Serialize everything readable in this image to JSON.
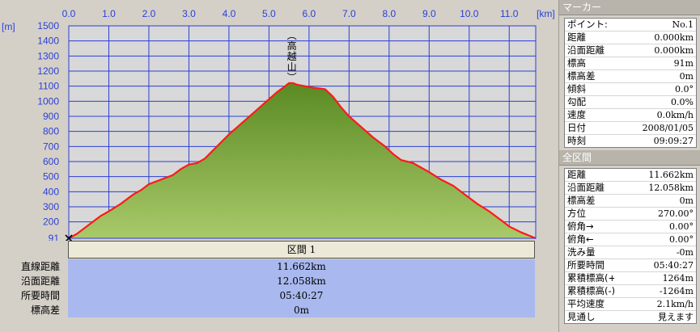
{
  "chart_data": {
    "type": "area",
    "xunit": "[km]",
    "yunit": "[m]",
    "x_ticks": [
      "0.0",
      "1.0",
      "2.0",
      "3.0",
      "4.0",
      "5.0",
      "6.0",
      "7.0",
      "8.0",
      "9.0",
      "10.0",
      "11.0"
    ],
    "y_ticks": [
      91,
      200,
      300,
      400,
      500,
      600,
      700,
      800,
      900,
      1000,
      1100,
      1200,
      1300,
      1400,
      1500
    ],
    "xlim": [
      0,
      11.662
    ],
    "ylim": [
      91,
      1500
    ],
    "grid": true,
    "peak_label": "高越山",
    "peak_x": 5.57,
    "series": [
      {
        "x": [
          0,
          0.2,
          0.5,
          0.8,
          1.0,
          1.3,
          1.6,
          1.8,
          2.0,
          2.3,
          2.6,
          2.8,
          3.0,
          3.2,
          3.4,
          3.7,
          4.0,
          4.3,
          4.6,
          4.9,
          5.2,
          5.4,
          5.5,
          5.6,
          5.7,
          5.9,
          6.1,
          6.4,
          6.6,
          6.8,
          7.0,
          7.3,
          7.6,
          7.9,
          8.1,
          8.3,
          8.6,
          8.8,
          9.0,
          9.3,
          9.6,
          9.9,
          10.2,
          10.5,
          10.8,
          11.0,
          11.3,
          11.662
        ],
        "y": [
          91,
          120,
          180,
          240,
          270,
          320,
          380,
          410,
          450,
          480,
          510,
          550,
          580,
          590,
          620,
          700,
          780,
          850,
          920,
          990,
          1060,
          1100,
          1120,
          1120,
          1110,
          1100,
          1090,
          1080,
          1030,
          960,
          900,
          830,
          760,
          700,
          650,
          610,
          590,
          560,
          530,
          480,
          440,
          380,
          320,
          270,
          210,
          170,
          130,
          91
        ]
      }
    ]
  },
  "section": {
    "title": "区間 1",
    "rows": [
      {
        "label": "直線距離",
        "value": "11.662km"
      },
      {
        "label": "沿面距離",
        "value": "12.058km"
      },
      {
        "label": "所要時間",
        "value": "05:40:27"
      },
      {
        "label": "標高差",
        "value": "0m"
      }
    ]
  },
  "panel": {
    "marker_title": "マーカー",
    "marker_rows": [
      {
        "k": "ポイント:",
        "v": "No.1"
      },
      {
        "k": "距離",
        "v": "0.000km"
      },
      {
        "k": "沿面距離",
        "v": "0.000km"
      },
      {
        "k": "標高",
        "v": "91m"
      },
      {
        "k": "標高差",
        "v": "0m"
      },
      {
        "k": "傾斜",
        "v": "0.0°"
      },
      {
        "k": "勾配",
        "v": "0.0%"
      },
      {
        "k": "速度",
        "v": "0.0km/h"
      },
      {
        "k": "日付",
        "v": "2008/01/05"
      },
      {
        "k": "時刻",
        "v": "09:09:27"
      }
    ],
    "total_title": "全区間",
    "total_rows": [
      {
        "k": "距離",
        "v": "11.662km"
      },
      {
        "k": "沿面距離",
        "v": "12.058km"
      },
      {
        "k": "標高差",
        "v": "0m"
      },
      {
        "k": "方位",
        "v": "270.00°"
      },
      {
        "k": "俯角→",
        "v": "0.00°"
      },
      {
        "k": "俯角←",
        "v": "0.00°"
      },
      {
        "k": "洗み量",
        "v": "-0m"
      },
      {
        "k": "所要時間",
        "v": "05:40:27"
      },
      {
        "k": "累積標高(+)",
        "v": "1264m"
      },
      {
        "k": "累積標高(-)",
        "v": "-1264m"
      },
      {
        "k": "平均速度",
        "v": "2.1km/h"
      },
      {
        "k": "見通し",
        "v": "見えます"
      }
    ],
    "colors": {
      "fill_top": "#5a8a22",
      "fill_bottom": "#a9c96a",
      "line": "#ff1a1a",
      "grid": "#2b3fd6",
      "plot_bg": "#d8d8d8"
    }
  }
}
